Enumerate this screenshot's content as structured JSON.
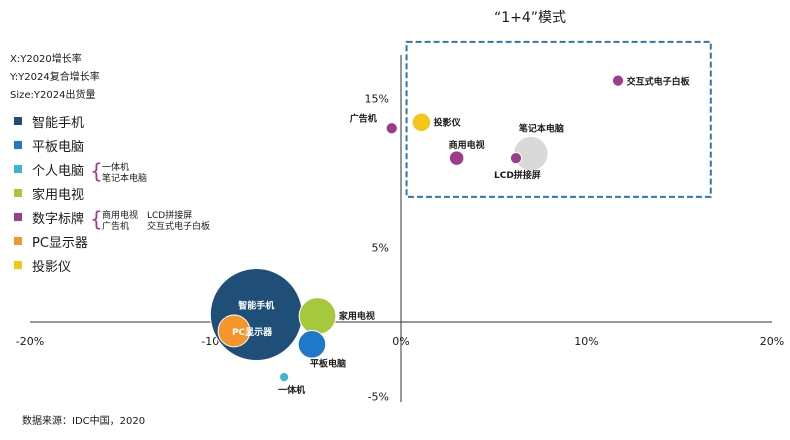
{
  "meta": {
    "x_desc": "X:Y2020增长率",
    "y_desc": "Y:Y2024复合增长率",
    "size_desc": "Size:Y2024出货量",
    "source": "数据来源：IDC中国，2020"
  },
  "title": "“1+4”模式",
  "legend": [
    {
      "label": "智能手机",
      "color": "#1f4e79"
    },
    {
      "label": "平板电脑",
      "color": "#1f78c8"
    },
    {
      "label": "个人电脑",
      "color": "#3cb6d0",
      "sub": [
        "一体机",
        "笔记本电脑"
      ]
    },
    {
      "label": "家用电视",
      "color": "#a6c83c"
    },
    {
      "label": "数字标牌",
      "color": "#9b3c8c",
      "sub": [
        "商用电视　LCD拼接屏",
        "广告机　　交互式电子白板"
      ]
    },
    {
      "label": "PC显示器",
      "color": "#f4962c"
    },
    {
      "label": "投影仪",
      "color": "#f5c518"
    }
  ],
  "chart_data": {
    "type": "scatter",
    "x_ticks": [
      "-20%",
      "-10%",
      "0%",
      "10%",
      "20%"
    ],
    "y_ticks": [
      "15%",
      "5%",
      "-5%"
    ],
    "xlim": [
      -20,
      20
    ],
    "ylim": [
      -5,
      15
    ],
    "points": [
      {
        "name": "智能手机",
        "x": -7.8,
        "y": 0.5,
        "size": 100,
        "color": "#1f4e79",
        "label_inside": true
      },
      {
        "name": "PC显示器",
        "x": -9.0,
        "y": -0.6,
        "size": 12,
        "color": "#f4962c",
        "label_inside": true
      },
      {
        "name": "家用电视",
        "x": -4.5,
        "y": 0.4,
        "size": 16,
        "color": "#a6c83c"
      },
      {
        "name": "平板电脑",
        "x": -4.8,
        "y": -1.5,
        "size": 9,
        "color": "#1f78c8"
      },
      {
        "name": "一体机",
        "x": -6.3,
        "y": -3.7,
        "size": 1,
        "color": "#3cb6d0"
      },
      {
        "name": "笔记本电脑",
        "x": 7.0,
        "y": 11.3,
        "size": 14,
        "color": "#d9d9d9"
      },
      {
        "name": "交互式电子白板",
        "x": 11.7,
        "y": 16.2,
        "size": 1.5,
        "color": "#9b3c8c"
      },
      {
        "name": "投影仪",
        "x": 1.1,
        "y": 13.4,
        "size": 4,
        "color": "#f5c518"
      },
      {
        "name": "广告机",
        "x": -0.5,
        "y": 13.0,
        "size": 1.5,
        "color": "#9b3c8c"
      },
      {
        "name": "商用电视",
        "x": 3.0,
        "y": 11.0,
        "size": 2.5,
        "color": "#9b3c8c"
      },
      {
        "name": "LCD拼接屏",
        "x": 6.2,
        "y": 11.0,
        "size": 1.5,
        "color": "#9b3c8c"
      }
    ],
    "box": {
      "x_range": [
        0.3,
        16.7
      ],
      "y_range": [
        8.4,
        18.8
      ],
      "color": "#2e75b6"
    }
  }
}
